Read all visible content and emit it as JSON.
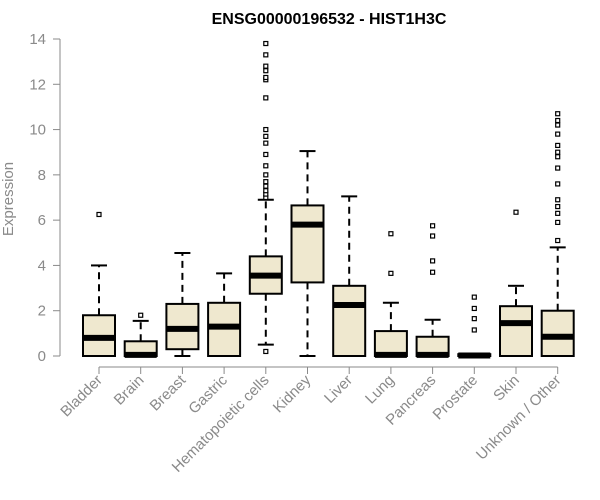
{
  "chart_data": {
    "type": "box",
    "title": "ENSG00000196532 - HIST1H3C",
    "ylabel": "Expression",
    "ylim": [
      0,
      14
    ],
    "yticks": [
      0,
      2,
      4,
      6,
      8,
      10,
      12,
      14
    ],
    "box_fill": "#efe8cf",
    "categories": [
      "Bladder",
      "Brain",
      "Breast",
      "Gastric",
      "Hematopoietic cells",
      "Kidney",
      "Liver",
      "Lung",
      "Pancreas",
      "Prostate",
      "Skin",
      "Unknown / Other"
    ],
    "boxes": [
      {
        "category": "Bladder",
        "whisker_low": 0,
        "q1": 0,
        "median": 0.8,
        "q3": 1.8,
        "whisker_high": 4.0,
        "outliers": [
          6.25
        ]
      },
      {
        "category": "Brain",
        "whisker_low": 0,
        "q1": 0,
        "median": 0.05,
        "q3": 0.65,
        "whisker_high": 1.55,
        "outliers": [
          1.8
        ]
      },
      {
        "category": "Breast",
        "whisker_low": 0,
        "q1": 0.3,
        "median": 1.2,
        "q3": 2.3,
        "whisker_high": 4.55,
        "outliers": []
      },
      {
        "category": "Gastric",
        "whisker_low": 0,
        "q1": 0,
        "median": 1.3,
        "q3": 2.35,
        "whisker_high": 3.65,
        "outliers": []
      },
      {
        "category": "Hematopoietic cells",
        "whisker_low": 0.5,
        "q1": 2.75,
        "median": 3.55,
        "q3": 4.4,
        "whisker_high": 6.9,
        "outliers": [
          0.2,
          7.0,
          7.15,
          7.3,
          7.5,
          7.7,
          8.0,
          8.4,
          8.9,
          9.4,
          9.7,
          10.0,
          11.4,
          12.2,
          12.3,
          12.6,
          12.8,
          13.3,
          13.8
        ]
      },
      {
        "category": "Kidney",
        "whisker_low": 0,
        "q1": 3.25,
        "median": 5.8,
        "q3": 6.65,
        "whisker_high": 9.05,
        "outliers": []
      },
      {
        "category": "Liver",
        "whisker_low": 0,
        "q1": 0,
        "median": 2.25,
        "q3": 3.1,
        "whisker_high": 7.05,
        "outliers": []
      },
      {
        "category": "Lung",
        "whisker_low": 0,
        "q1": 0,
        "median": 0.05,
        "q3": 1.1,
        "whisker_high": 2.35,
        "outliers": [
          3.65,
          5.4
        ]
      },
      {
        "category": "Pancreas",
        "whisker_low": 0,
        "q1": 0,
        "median": 0.05,
        "q3": 0.85,
        "whisker_high": 1.6,
        "outliers": [
          3.7,
          4.2,
          5.3,
          5.75
        ]
      },
      {
        "category": "Prostate",
        "whisker_low": 0,
        "q1": 0,
        "median": 0.02,
        "q3": 0.08,
        "whisker_high": 0.1,
        "outliers": [
          1.15,
          1.65,
          2.1,
          2.6
        ]
      },
      {
        "category": "Skin",
        "whisker_low": 0,
        "q1": 0,
        "median": 1.45,
        "q3": 2.2,
        "whisker_high": 3.1,
        "outliers": [
          6.35
        ]
      },
      {
        "category": "Unknown / Other",
        "whisker_low": 0,
        "q1": 0,
        "median": 0.85,
        "q3": 2.0,
        "whisker_high": 4.8,
        "outliers": [
          5.1,
          5.9,
          6.3,
          6.6,
          6.9,
          7.6,
          8.3,
          8.8,
          9.0,
          9.3,
          9.8,
          10.2,
          10.4,
          10.7
        ]
      }
    ]
  }
}
